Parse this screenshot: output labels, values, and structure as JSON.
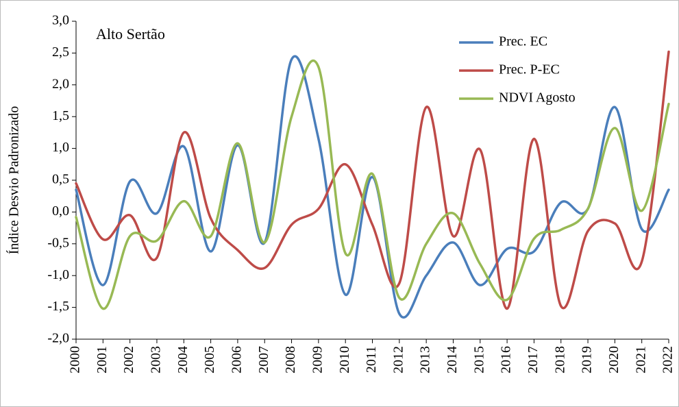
{
  "chart_data": {
    "type": "line",
    "title": "Alto Sertão",
    "y_label": "Índice Desvio Padronizado",
    "categories": [
      "2000",
      "2001",
      "2002",
      "2003",
      "2004",
      "2005",
      "2006",
      "2007",
      "2008",
      "2009",
      "2010",
      "2011",
      "2012",
      "2013",
      "2014",
      "2015",
      "2016",
      "2017",
      "2018",
      "2019",
      "2020",
      "2021",
      "2022"
    ],
    "series": [
      {
        "name": "Prec. EC",
        "color": "#4a7ebb",
        "values": [
          0.35,
          -1.15,
          0.48,
          -0.02,
          1.03,
          -0.62,
          1.05,
          -0.48,
          2.4,
          1.15,
          -1.3,
          0.55,
          -1.6,
          -1.0,
          -0.48,
          -1.15,
          -0.58,
          -0.62,
          0.15,
          0.05,
          1.65,
          -0.27,
          0.35
        ]
      },
      {
        "name": "Prec. P-EC",
        "color": "#be4b48",
        "values": [
          0.45,
          -0.43,
          -0.05,
          -0.72,
          1.25,
          -0.1,
          -0.6,
          -0.88,
          -0.2,
          0.05,
          0.75,
          -0.2,
          -1.12,
          1.65,
          -0.38,
          0.98,
          -1.52,
          1.15,
          -1.48,
          -0.3,
          -0.18,
          -0.78,
          2.52
        ]
      },
      {
        "name": "NDVI Agosto",
        "color": "#98b954",
        "values": [
          -0.08,
          -1.52,
          -0.38,
          -0.45,
          0.17,
          -0.38,
          1.08,
          -0.48,
          1.5,
          2.28,
          -0.65,
          0.6,
          -1.35,
          -0.5,
          -0.02,
          -0.82,
          -1.38,
          -0.42,
          -0.28,
          0.05,
          1.32,
          0.02,
          1.7
        ]
      }
    ],
    "ylim": [
      -2,
      3
    ],
    "yticks": [
      {
        "value": -2,
        "label": "-2,0"
      },
      {
        "value": -1.5,
        "label": "-1,5"
      },
      {
        "value": -1,
        "label": "-1,0"
      },
      {
        "value": -0.5,
        "label": "-0,5"
      },
      {
        "value": 0,
        "label": "0,0"
      },
      {
        "value": 0.5,
        "label": "0,5"
      },
      {
        "value": 1,
        "label": "1,0"
      },
      {
        "value": 1.5,
        "label": "1,5"
      },
      {
        "value": 2,
        "label": "2,0"
      },
      {
        "value": 2.5,
        "label": "2,5"
      },
      {
        "value": 3,
        "label": "3,0"
      }
    ],
    "legend": "upper right",
    "grid": false
  }
}
